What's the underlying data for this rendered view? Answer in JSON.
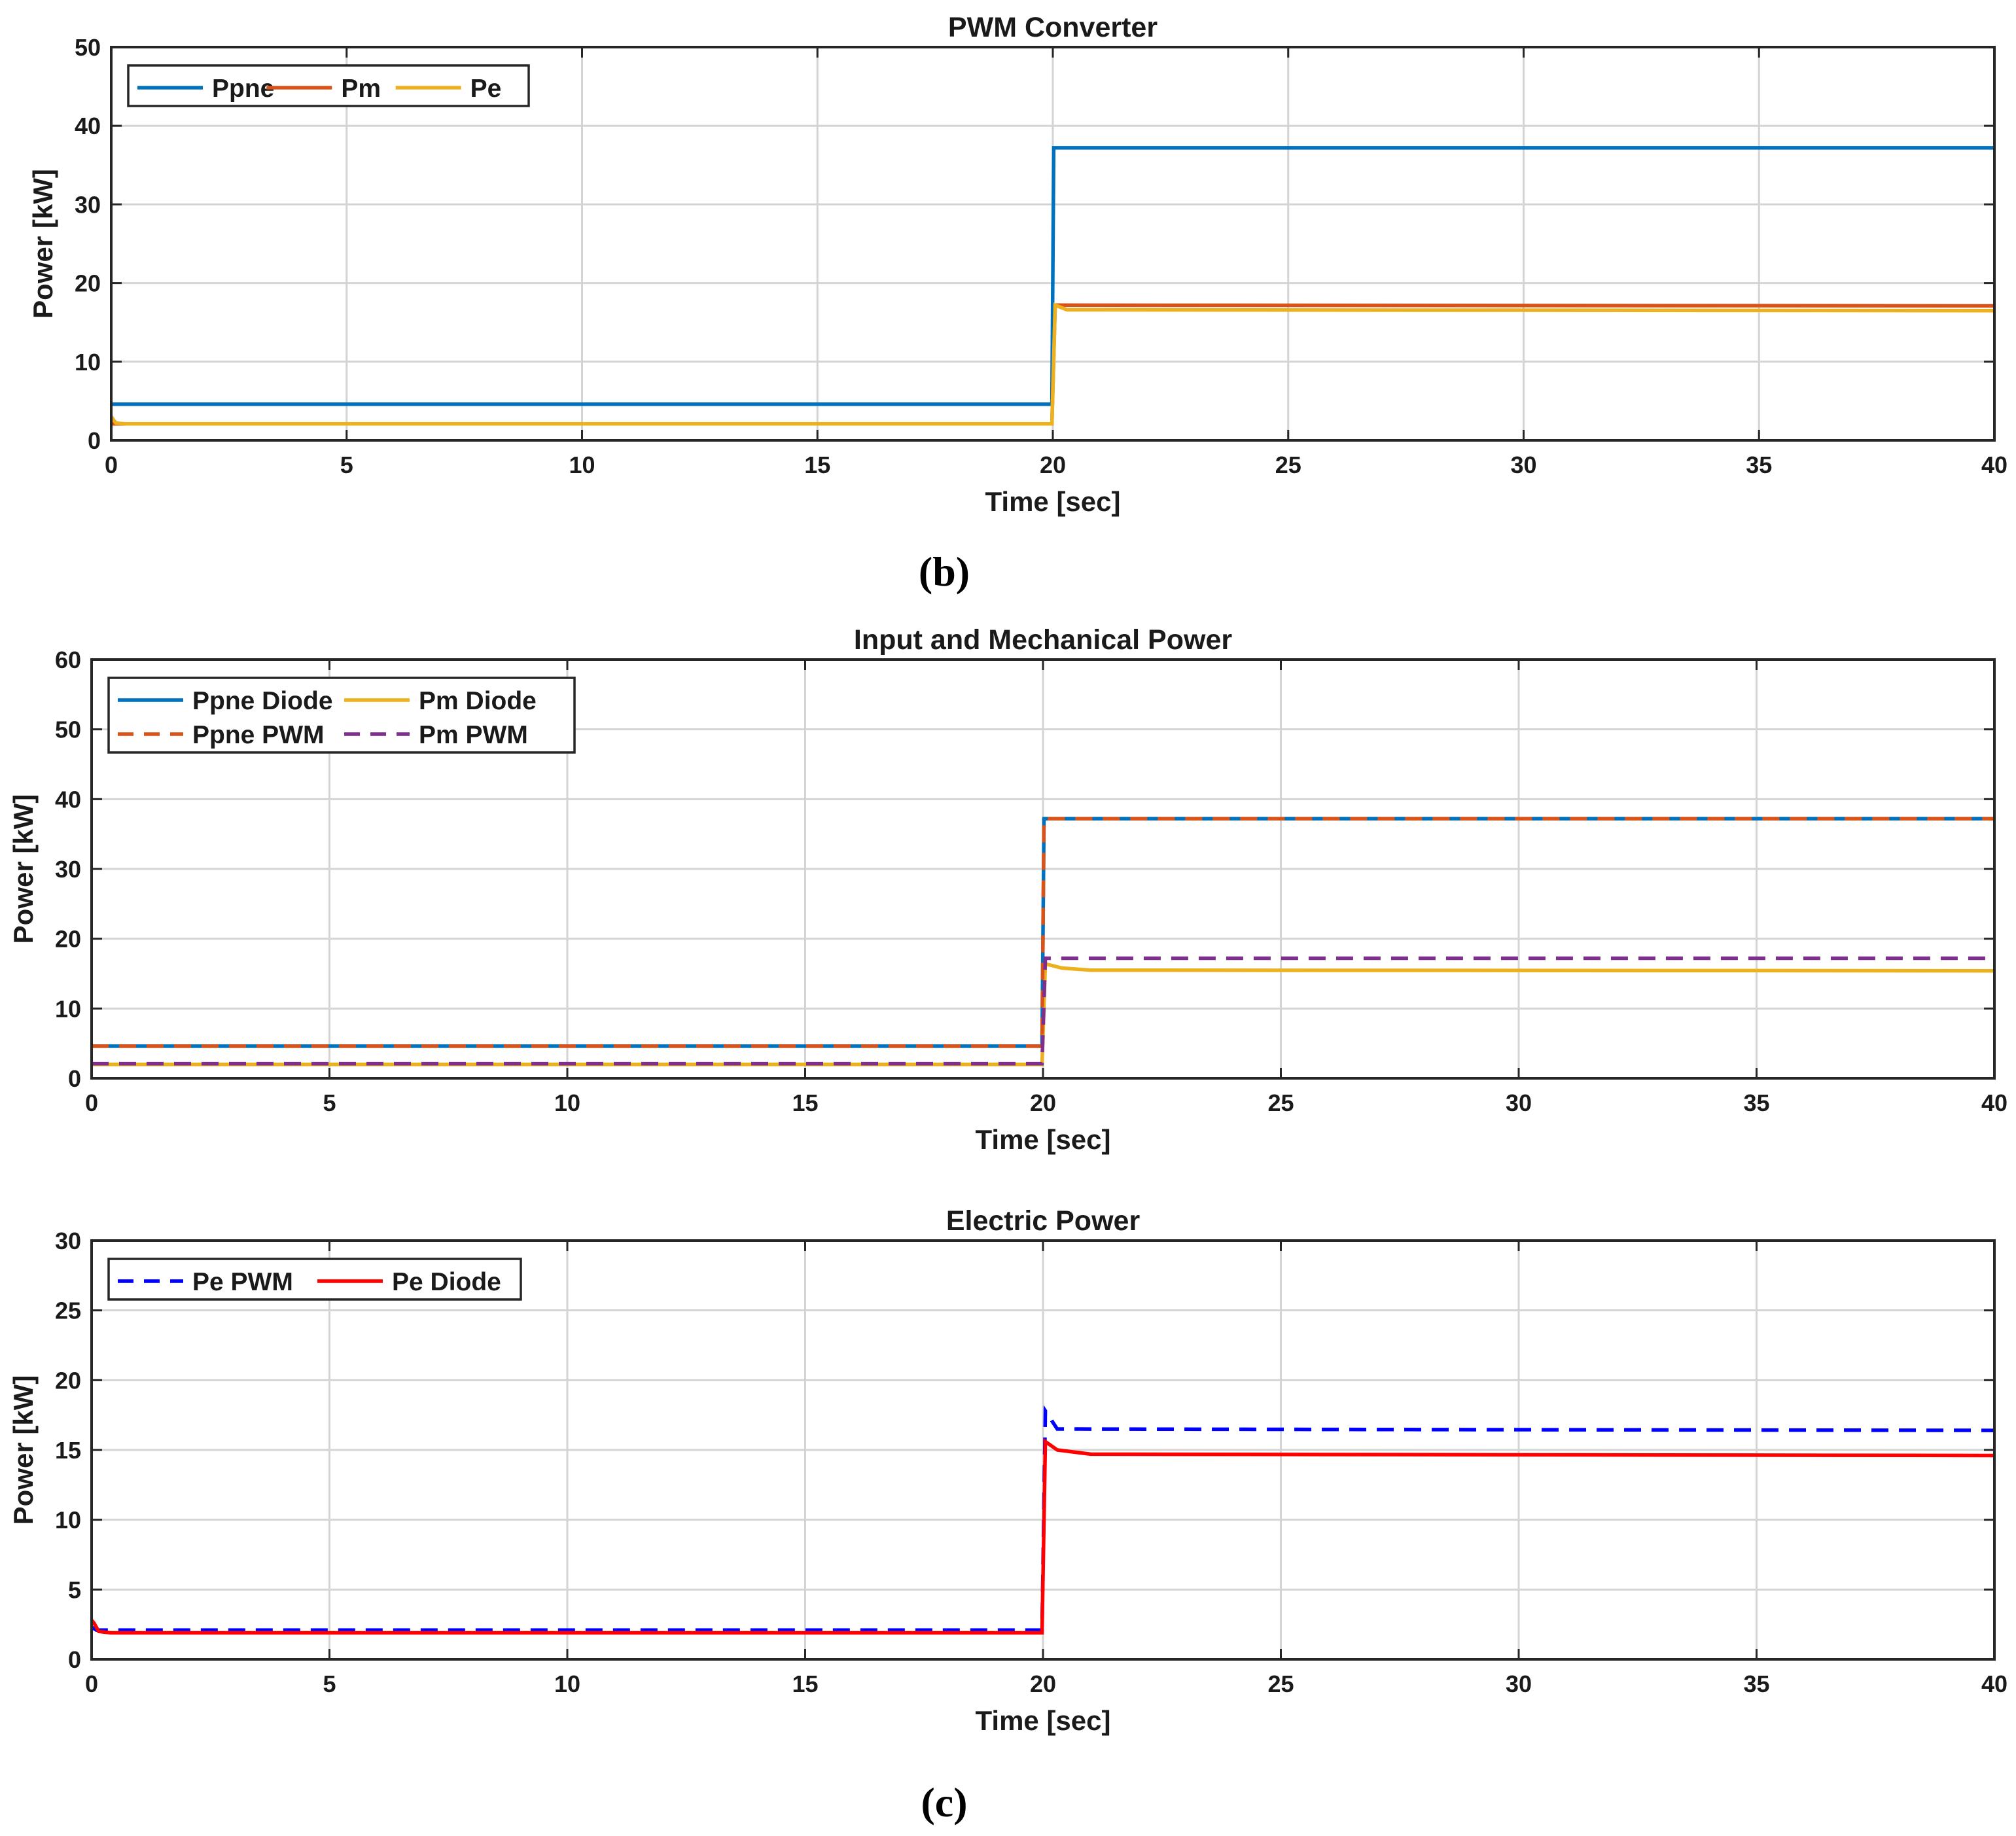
{
  "captions": [
    "(b)",
    "(c)"
  ],
  "chart_data": [
    {
      "type": "line",
      "title": "PWM Converter",
      "xlabel": "Time [sec]",
      "ylabel": "Power [kW]",
      "xlim": [
        0,
        40
      ],
      "ylim": [
        0,
        50
      ],
      "xticks": [
        0,
        5,
        10,
        15,
        20,
        25,
        30,
        35,
        40
      ],
      "yticks": [
        0,
        10,
        20,
        30,
        40,
        50
      ],
      "grid": true,
      "legend": {
        "placement": "top-left",
        "columns": 3
      },
      "series": [
        {
          "name": "Ppne",
          "color": "#0072BD",
          "dash": "solid",
          "x": [
            0,
            19.98,
            20.02,
            40
          ],
          "y": [
            4.6,
            4.6,
            37.2,
            37.2
          ]
        },
        {
          "name": "Pm",
          "color": "#D95319",
          "dash": "solid",
          "x": [
            0,
            19.98,
            20.05,
            40
          ],
          "y": [
            2.1,
            2.1,
            17.2,
            17.1
          ]
        },
        {
          "name": "Pe",
          "color": "#EDB120",
          "dash": "solid",
          "x": [
            0,
            0.1,
            0.3,
            19.98,
            20.05,
            20.3,
            40
          ],
          "y": [
            3.0,
            2.2,
            2.1,
            2.1,
            17.2,
            16.6,
            16.5
          ]
        }
      ]
    },
    {
      "type": "line",
      "title": "Input and Mechanical Power",
      "xlabel": "Time [sec]",
      "ylabel": "Power [kW]",
      "xlim": [
        0,
        40
      ],
      "ylim": [
        0,
        60
      ],
      "xticks": [
        0,
        5,
        10,
        15,
        20,
        25,
        30,
        35,
        40
      ],
      "yticks": [
        0,
        10,
        20,
        30,
        40,
        50,
        60
      ],
      "grid": true,
      "legend": {
        "placement": "top-left",
        "columns": 2
      },
      "series": [
        {
          "name": "Ppne Diode",
          "color": "#0072BD",
          "dash": "solid",
          "x": [
            0,
            19.98,
            20.02,
            40
          ],
          "y": [
            4.6,
            4.6,
            37.2,
            37.2
          ]
        },
        {
          "name": "Pm Diode",
          "color": "#EDB120",
          "dash": "solid",
          "x": [
            0,
            19.98,
            20.05,
            20.4,
            21,
            40
          ],
          "y": [
            2.0,
            2.0,
            16.4,
            15.8,
            15.5,
            15.4
          ]
        },
        {
          "name": "Ppne PWM",
          "color": "#D95319",
          "dash": "dashed",
          "x": [
            0,
            19.98,
            20.02,
            40
          ],
          "y": [
            4.6,
            4.6,
            37.2,
            37.2
          ]
        },
        {
          "name": "Pm PWM",
          "color": "#7E2F8E",
          "dash": "dashed",
          "x": [
            0,
            19.98,
            20.05,
            40
          ],
          "y": [
            2.1,
            2.1,
            17.2,
            17.2
          ]
        }
      ]
    },
    {
      "type": "line",
      "title": "Electric Power",
      "xlabel": "Time [sec]",
      "ylabel": "Power [kW]",
      "xlim": [
        0,
        40
      ],
      "ylim": [
        0,
        30
      ],
      "xticks": [
        0,
        5,
        10,
        15,
        20,
        25,
        30,
        35,
        40
      ],
      "yticks": [
        0,
        5,
        10,
        15,
        20,
        25,
        30
      ],
      "grid": true,
      "legend": {
        "placement": "top-left",
        "columns": 2
      },
      "series": [
        {
          "name": "Pe PWM",
          "color": "#0000FF",
          "dash": "dashed",
          "x": [
            0,
            0.1,
            0.3,
            19.98,
            20.05,
            20.3,
            40
          ],
          "y": [
            2.3,
            2.1,
            2.1,
            2.1,
            17.8,
            16.5,
            16.4
          ]
        },
        {
          "name": "Pe Diode",
          "color": "#FF0000",
          "dash": "solid",
          "x": [
            0,
            0.05,
            0.15,
            0.4,
            19.98,
            20.05,
            20.3,
            21,
            40
          ],
          "y": [
            2.8,
            2.6,
            2.0,
            1.9,
            1.9,
            15.6,
            15.0,
            14.7,
            14.6
          ]
        }
      ]
    }
  ]
}
